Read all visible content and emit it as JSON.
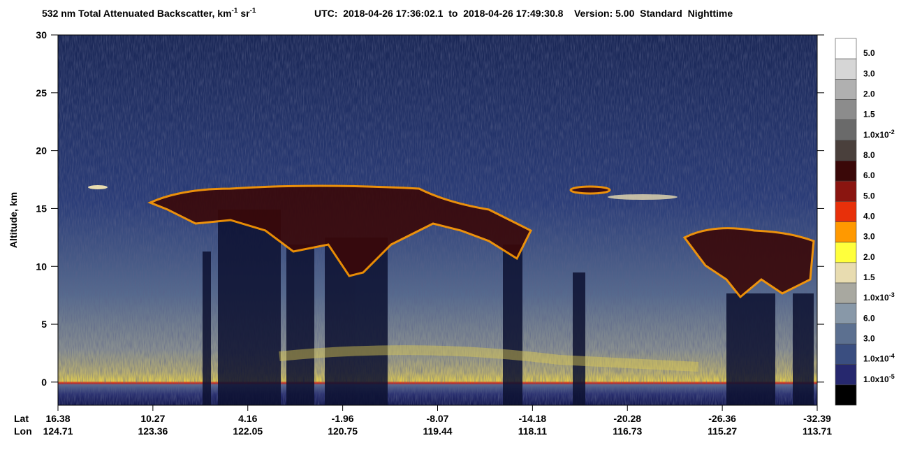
{
  "chart_data": {
    "type": "heatmap",
    "title": {
      "main": "532 nm Total Attenuated Backscatter, km",
      "sup1": "-1",
      "mid": " sr",
      "sup2": "-1",
      "info": "UTC:  2018-04-26 17:36:02.1  to  2018-04-26 17:49:30.8    Version: 5.00  Standard  Nighttime"
    },
    "y_label": "Altitude, km",
    "ylim": [
      -2,
      30
    ],
    "yticks": [
      0,
      5,
      10,
      15,
      20,
      25,
      30
    ],
    "x_rows": [
      "Lat",
      "Lon"
    ],
    "lat": [
      "16.38",
      "10.27",
      "4.16",
      "-1.96",
      "-8.07",
      "-14.18",
      "-20.28",
      "-26.36",
      "-32.39"
    ],
    "lon": [
      "124.71",
      "123.36",
      "122.05",
      "120.75",
      "119.44",
      "118.11",
      "116.73",
      "115.27",
      "113.71"
    ],
    "colorbar": {
      "colors": [
        "#ffffff",
        "#d6d6d6",
        "#b0b0b0",
        "#8c8c8c",
        "#6a6a6a",
        "#4a403c",
        "#3a0808",
        "#8a1510",
        "#e8300a",
        "#ff9900",
        "#ffff3c",
        "#e8dcb0",
        "#a8a8a0",
        "#8898a8",
        "#5c7090",
        "#3a4e80",
        "#26286e",
        "#000000"
      ],
      "labels": [
        {
          "text": "5.0"
        },
        {
          "text": "3.0"
        },
        {
          "text": "2.0"
        },
        {
          "text": "1.5"
        },
        {
          "text": "1.0x10",
          "exp": "-2"
        },
        {
          "text": "8.0"
        },
        {
          "text": "6.0"
        },
        {
          "text": "5.0"
        },
        {
          "text": "4.0"
        },
        {
          "text": "3.0"
        },
        {
          "text": "2.0"
        },
        {
          "text": "1.5"
        },
        {
          "text": "1.0x10",
          "exp": "-3"
        },
        {
          "text": "6.0"
        },
        {
          "text": "3.0"
        },
        {
          "text": "1.0x10",
          "exp": "-4"
        },
        {
          "text": "1.0x10",
          "exp": "-5"
        }
      ]
    }
  }
}
